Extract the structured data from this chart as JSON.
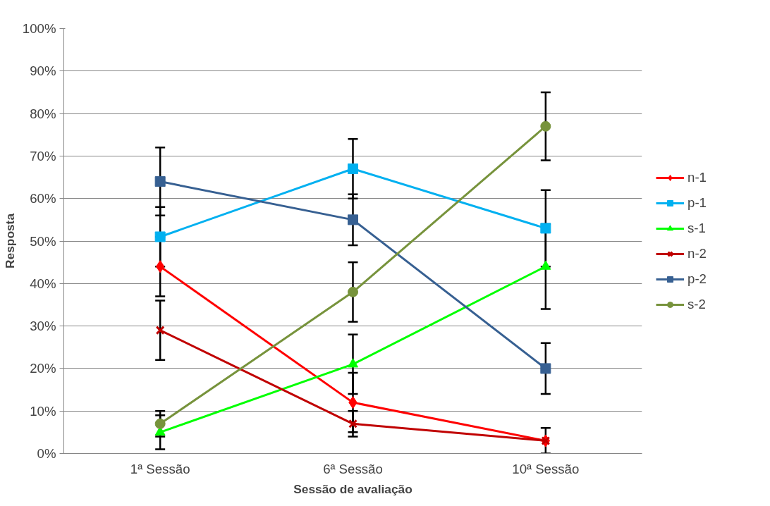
{
  "chart_data": {
    "type": "line",
    "xlabel": "Sessão de avaliação",
    "ylabel": "Resposta",
    "categories": [
      "1ª Sessão",
      "6ª Sessão",
      "10ª Sessão"
    ],
    "series": [
      {
        "name": "n-1",
        "color": "#ff0000",
        "marker": "diamond",
        "values": [
          0.44,
          0.12,
          0.03
        ],
        "errors": [
          0.07,
          0.07,
          null
        ]
      },
      {
        "name": "p-1",
        "color": "#00b0f0",
        "marker": "square",
        "values": [
          0.51,
          0.67,
          0.53
        ],
        "errors": [
          0.07,
          0.07,
          0.09
        ]
      },
      {
        "name": "s-1",
        "color": "#00ff00",
        "marker": "triangle",
        "values": [
          0.05,
          0.21,
          0.44
        ],
        "errors": [
          0.04,
          0.07,
          0.1
        ]
      },
      {
        "name": "n-2",
        "color": "#c00000",
        "marker": "cross",
        "values": [
          0.29,
          0.07,
          0.03
        ],
        "errors": [
          0.07,
          0.03,
          0.03
        ]
      },
      {
        "name": "p-2",
        "color": "#376092",
        "marker": "square",
        "values": [
          0.64,
          0.55,
          0.2
        ],
        "errors": [
          0.08,
          0.06,
          0.06
        ]
      },
      {
        "name": "s-2",
        "color": "#77933c",
        "marker": "circle",
        "values": [
          0.07,
          0.38,
          0.77
        ],
        "errors": [
          0.03,
          0.07,
          0.08
        ]
      }
    ],
    "ylim": [
      0,
      1
    ],
    "yticks": [
      {
        "value": 0,
        "label": "0%"
      },
      {
        "value": 0.1,
        "label": "10%"
      },
      {
        "value": 0.2,
        "label": "20%"
      },
      {
        "value": 0.3,
        "label": "30%"
      },
      {
        "value": 0.4,
        "label": "40%"
      },
      {
        "value": 0.5,
        "label": "50%"
      },
      {
        "value": 0.6,
        "label": "60%"
      },
      {
        "value": 0.7,
        "label": "70%"
      },
      {
        "value": 0.8,
        "label": "80%"
      },
      {
        "value": 0.9,
        "label": "90%"
      },
      {
        "value": 1,
        "label": "100%"
      }
    ],
    "grid": "y",
    "legend": "right",
    "line_style": "solid"
  }
}
